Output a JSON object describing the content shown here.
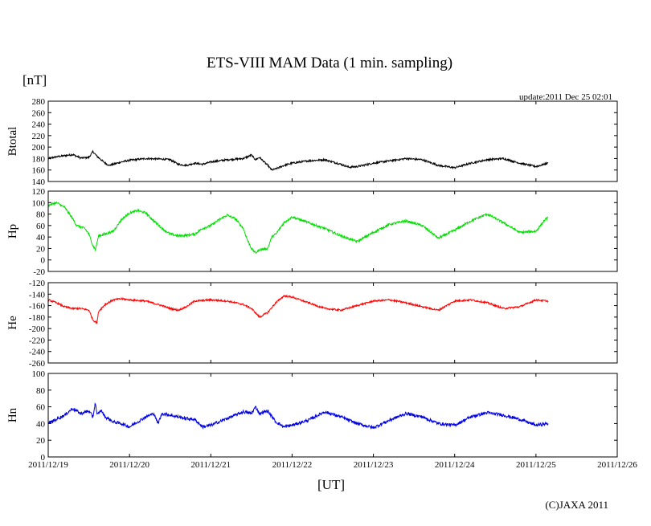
{
  "page": {
    "title": "ETS-VIII MAM Data (1 min. sampling)",
    "unit_label": "[nT]",
    "x_unit_label": "[UT]",
    "update_text": "update:2011 Dec 25 02:01",
    "copyright": "(C)JAXA 2011"
  },
  "chart_data": [
    {
      "type": "line",
      "ylabel": "Btotal",
      "ylim": [
        140,
        280
      ],
      "yticks": [
        140,
        160,
        180,
        200,
        220,
        240,
        260,
        280
      ],
      "xlim": [
        0,
        7
      ],
      "x_ticks": [
        "2011/12/19",
        "2011/12/20",
        "2011/12/21",
        "2011/12/22",
        "2011/12/23",
        "2011/12/24",
        "2011/12/25",
        "2011/12/26"
      ],
      "color": "#000000",
      "noise": 1.6,
      "series": [
        {
          "x": [
            0,
            0.1,
            0.2,
            0.3,
            0.4,
            0.5,
            0.55,
            0.6,
            0.65,
            0.7,
            0.75,
            0.8,
            0.9,
            1.0,
            1.2,
            1.4,
            1.5,
            1.6,
            1.7,
            1.8,
            1.9,
            2.0,
            2.2,
            2.4,
            2.5,
            2.55,
            2.6,
            2.7,
            2.75,
            2.8,
            2.9,
            3.0,
            3.2,
            3.4,
            3.6,
            3.7,
            3.8,
            4.0,
            4.2,
            4.4,
            4.6,
            4.8,
            5.0,
            5.2,
            5.4,
            5.6,
            5.8,
            6.0,
            6.1,
            6.15
          ],
          "y": [
            180,
            183,
            185,
            187,
            181,
            182,
            192,
            184,
            178,
            172,
            168,
            170,
            174,
            177,
            180,
            179,
            178,
            170,
            168,
            172,
            170,
            174,
            178,
            180,
            186,
            178,
            182,
            168,
            160,
            162,
            168,
            172,
            176,
            178,
            170,
            165,
            166,
            172,
            176,
            180,
            178,
            168,
            164,
            172,
            178,
            180,
            172,
            166,
            170,
            172
          ]
        }
      ]
    },
    {
      "type": "line",
      "ylabel": "Hp",
      "ylim": [
        -20,
        120
      ],
      "yticks": [
        -20,
        0,
        20,
        40,
        60,
        80,
        100,
        120
      ],
      "xlim": [
        0,
        7
      ],
      "x_ticks": [
        "2011/12/19",
        "2011/12/20",
        "2011/12/21",
        "2011/12/22",
        "2011/12/23",
        "2011/12/24",
        "2011/12/25",
        "2011/12/26"
      ],
      "color": "#00e000",
      "noise": 2.0,
      "series": [
        {
          "x": [
            0,
            0.1,
            0.2,
            0.3,
            0.35,
            0.45,
            0.5,
            0.55,
            0.58,
            0.62,
            0.7,
            0.8,
            0.9,
            1.0,
            1.1,
            1.2,
            1.3,
            1.4,
            1.5,
            1.6,
            1.7,
            1.8,
            1.9,
            2.0,
            2.1,
            2.2,
            2.3,
            2.4,
            2.45,
            2.5,
            2.55,
            2.6,
            2.7,
            2.75,
            2.8,
            2.9,
            3.0,
            3.1,
            3.2,
            3.4,
            3.6,
            3.8,
            4.0,
            4.2,
            4.4,
            4.6,
            4.8,
            5.0,
            5.2,
            5.4,
            5.6,
            5.8,
            6.0,
            6.1,
            6.15
          ],
          "y": [
            95,
            100,
            92,
            72,
            60,
            55,
            45,
            25,
            18,
            42,
            45,
            50,
            70,
            82,
            86,
            82,
            68,
            55,
            45,
            42,
            43,
            45,
            55,
            60,
            70,
            78,
            72,
            55,
            35,
            20,
            12,
            18,
            20,
            40,
            45,
            65,
            75,
            70,
            65,
            55,
            42,
            32,
            48,
            62,
            68,
            60,
            38,
            52,
            68,
            80,
            65,
            48,
            50,
            68,
            75
          ]
        }
      ]
    },
    {
      "type": "line",
      "ylabel": "He",
      "ylim": [
        -260,
        -120
      ],
      "yticks": [
        -260,
        -240,
        -220,
        -200,
        -180,
        -160,
        -140,
        -120
      ],
      "xlim": [
        0,
        7
      ],
      "x_ticks": [
        "2011/12/19",
        "2011/12/20",
        "2011/12/21",
        "2011/12/22",
        "2011/12/23",
        "2011/12/24",
        "2011/12/25",
        "2011/12/26"
      ],
      "color": "#ff0000",
      "noise": 1.5,
      "series": [
        {
          "x": [
            0,
            0.1,
            0.2,
            0.3,
            0.4,
            0.5,
            0.55,
            0.6,
            0.62,
            0.7,
            0.8,
            0.9,
            1.0,
            1.2,
            1.4,
            1.5,
            1.6,
            1.7,
            1.8,
            2.0,
            2.2,
            2.4,
            2.5,
            2.6,
            2.7,
            2.8,
            2.9,
            3.0,
            3.2,
            3.4,
            3.6,
            3.8,
            4.0,
            4.2,
            4.4,
            4.6,
            4.8,
            5.0,
            5.2,
            5.4,
            5.6,
            5.8,
            6.0,
            6.15
          ],
          "y": [
            -150,
            -155,
            -162,
            -165,
            -165,
            -168,
            -185,
            -190,
            -170,
            -158,
            -150,
            -148,
            -150,
            -152,
            -160,
            -165,
            -168,
            -162,
            -152,
            -150,
            -152,
            -158,
            -165,
            -180,
            -172,
            -155,
            -143,
            -145,
            -155,
            -165,
            -168,
            -160,
            -152,
            -150,
            -155,
            -162,
            -168,
            -152,
            -150,
            -155,
            -165,
            -162,
            -150,
            -152
          ]
        }
      ]
    },
    {
      "type": "line",
      "ylabel": "Hn",
      "ylim": [
        0,
        100
      ],
      "yticks": [
        0,
        20,
        40,
        60,
        80,
        100
      ],
      "xlim": [
        0,
        7
      ],
      "x_ticks": [
        "2011/12/19",
        "2011/12/20",
        "2011/12/21",
        "2011/12/22",
        "2011/12/23",
        "2011/12/24",
        "2011/12/25",
        "2011/12/26"
      ],
      "color": "#0000e0",
      "noise": 1.8,
      "series": [
        {
          "x": [
            0,
            0.1,
            0.2,
            0.3,
            0.4,
            0.5,
            0.55,
            0.58,
            0.6,
            0.65,
            0.7,
            0.8,
            0.9,
            1.0,
            1.1,
            1.2,
            1.3,
            1.35,
            1.4,
            1.5,
            1.6,
            1.7,
            1.8,
            1.9,
            2.0,
            2.2,
            2.4,
            2.5,
            2.55,
            2.6,
            2.7,
            2.8,
            2.9,
            3.0,
            3.2,
            3.4,
            3.6,
            3.8,
            4.0,
            4.2,
            4.4,
            4.6,
            4.8,
            5.0,
            5.2,
            5.4,
            5.6,
            5.8,
            6.0,
            6.15
          ],
          "y": [
            40,
            45,
            50,
            58,
            52,
            55,
            48,
            65,
            50,
            56,
            48,
            42,
            40,
            36,
            42,
            48,
            52,
            40,
            52,
            50,
            48,
            46,
            45,
            36,
            38,
            46,
            54,
            52,
            60,
            52,
            55,
            42,
            36,
            38,
            44,
            54,
            48,
            40,
            35,
            44,
            52,
            48,
            40,
            38,
            48,
            53,
            50,
            45,
            38,
            40
          ]
        }
      ]
    }
  ]
}
